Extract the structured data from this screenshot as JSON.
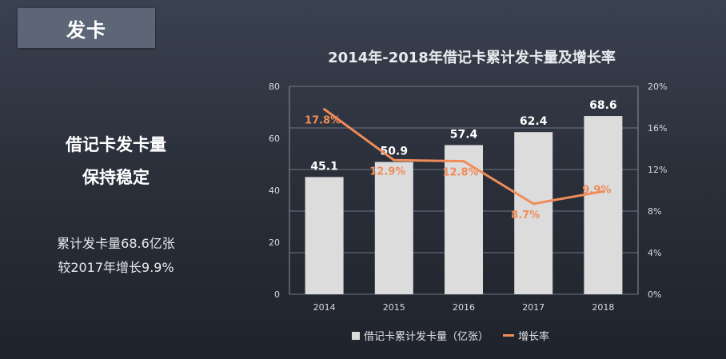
{
  "header": {
    "section_title": "发卡"
  },
  "left_panel": {
    "headline_line1": "借记卡发卡量",
    "headline_line2": "保持稳定",
    "summary_line1": "累计发卡量68.6亿张",
    "summary_line2": "较2017年增长9.9%"
  },
  "chart_data": {
    "type": "bar",
    "title": "2014年-2018年借记卡累计发卡量及增长率",
    "categories": [
      "2014",
      "2015",
      "2016",
      "2017",
      "2018"
    ],
    "series": [
      {
        "name": "借记卡累计发卡量（亿张）",
        "type": "bar",
        "axis": "left",
        "values": [
          45.1,
          50.9,
          57.4,
          62.4,
          68.6
        ],
        "labels": [
          "45.1",
          "50.9",
          "57.4",
          "62.4",
          "68.6"
        ],
        "color": "#dcdcdc"
      },
      {
        "name": "增长率",
        "type": "line",
        "axis": "right",
        "values": [
          17.8,
          12.9,
          12.8,
          8.7,
          9.9
        ],
        "labels": [
          "17.8%",
          "12.9%",
          "12.8%",
          "8.7%",
          "9.9%"
        ],
        "color": "#f08c5a"
      }
    ],
    "ylim": [
      0,
      80
    ],
    "y_ticks": [
      "0",
      "20",
      "40",
      "60",
      "80"
    ],
    "y2lim": [
      0,
      20
    ],
    "y2_ticks": [
      "0%",
      "4%",
      "8%",
      "12%",
      "16%",
      "20%"
    ],
    "grid": true,
    "legend_position": "bottom"
  }
}
